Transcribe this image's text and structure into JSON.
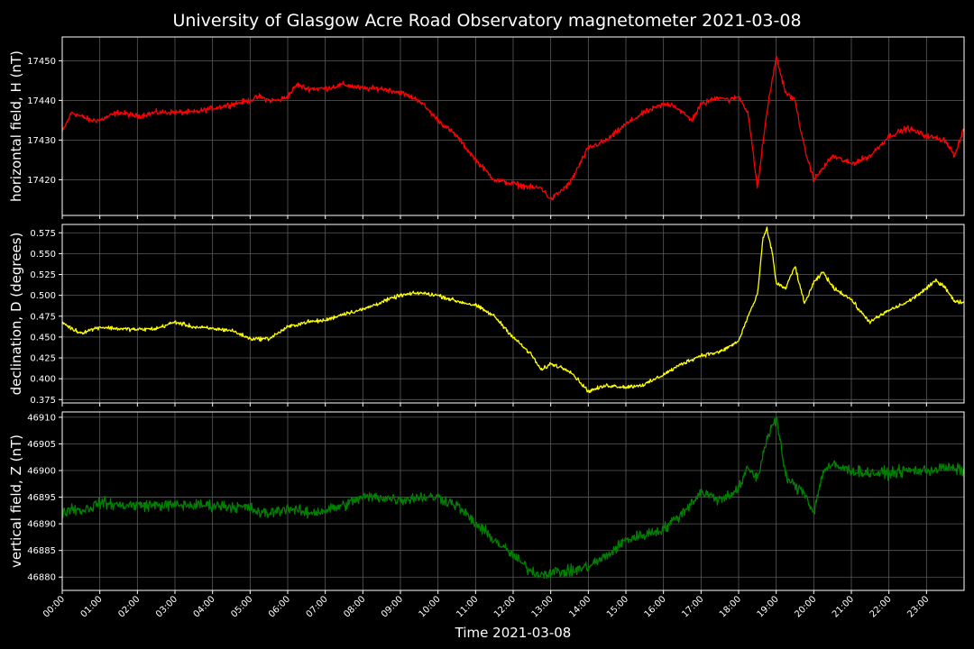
{
  "chart_data": {
    "type": "line",
    "title": "University of Glasgow Acre Road Observatory magnetometer 2021-03-08",
    "xlabel": "Time 2021-03-08",
    "x_ticks": [
      "00:00",
      "01:00",
      "02:00",
      "03:00",
      "04:00",
      "05:00",
      "06:00",
      "07:00",
      "08:00",
      "09:00",
      "10:00",
      "11:00",
      "12:00",
      "13:00",
      "14:00",
      "15:00",
      "16:00",
      "17:00",
      "18:00",
      "19:00",
      "20:00",
      "21:00",
      "22:00",
      "23:00"
    ],
    "xlim_hours": [
      0,
      24
    ],
    "grid": true,
    "background": "#000000",
    "panels": [
      {
        "ylabel": "horizontal field, H (nT)",
        "color": "#ff0000",
        "ylim": [
          17411,
          17456
        ],
        "y_ticks": [
          17420,
          17430,
          17440,
          17450
        ],
        "noise": 0.6,
        "x": [
          0,
          0.1,
          0.25,
          0.5,
          0.75,
          1,
          1.5,
          2,
          2.5,
          3,
          3.5,
          4,
          4.5,
          5,
          5.25,
          5.5,
          5.75,
          6,
          6.25,
          6.5,
          7,
          7.5,
          8,
          8.5,
          9,
          9.5,
          10,
          10.5,
          11,
          11.5,
          12,
          12.5,
          12.75,
          13,
          13.5,
          14,
          14.5,
          15,
          15.5,
          16,
          16.25,
          16.5,
          16.75,
          17,
          17.5,
          17.75,
          18,
          18.25,
          18.5,
          18.75,
          19,
          19.25,
          19.5,
          19.75,
          20,
          20.25,
          20.5,
          21,
          21.5,
          22,
          22.5,
          23,
          23.5,
          23.75,
          24
        ],
        "values": [
          17432,
          17434,
          17437,
          17436,
          17435,
          17435,
          17437,
          17436,
          17437,
          17437,
          17437,
          17438,
          17439,
          17440,
          17441,
          17440,
          17440,
          17441,
          17444,
          17443,
          17443,
          17444,
          17443,
          17443,
          17442,
          17440,
          17435,
          17431,
          17425,
          17420,
          17419,
          17418,
          17418,
          17415,
          17419,
          17428,
          17430,
          17434,
          17437,
          17439,
          17439,
          17437,
          17435,
          17439,
          17441,
          17440,
          17441,
          17437,
          17418,
          17437,
          17451,
          17442,
          17440,
          17428,
          17420,
          17423,
          17426,
          17424,
          17426,
          17431,
          17433,
          17431,
          17430,
          17426,
          17433
        ]
      },
      {
        "ylabel": "declination, D (degrees)",
        "color": "#ffff00",
        "ylim": [
          0.371,
          0.585
        ],
        "y_ticks": [
          0.375,
          0.4,
          0.425,
          0.45,
          0.475,
          0.5,
          0.525,
          0.55,
          0.575
        ],
        "y_tick_labels": [
          "0.375",
          "0.400",
          "0.425",
          "0.450",
          "0.475",
          "0.500",
          "0.525",
          "0.550",
          "0.575"
        ],
        "noise": 0.002,
        "x": [
          0,
          0.25,
          0.5,
          1,
          1.5,
          2,
          2.5,
          3,
          3.5,
          4,
          4.5,
          5,
          5.5,
          6,
          6.5,
          7,
          7.5,
          8,
          8.5,
          9,
          9.5,
          10,
          10.5,
          11,
          11.5,
          12,
          12.5,
          12.75,
          13,
          13.5,
          14,
          14.5,
          15,
          15.5,
          16,
          16.5,
          17,
          17.5,
          18,
          18.25,
          18.5,
          18.65,
          18.75,
          18.9,
          19,
          19.25,
          19.5,
          19.75,
          20,
          20.25,
          20.5,
          21,
          21.25,
          21.5,
          22,
          22.5,
          23,
          23.25,
          23.5,
          23.75,
          24
        ],
        "values": [
          0.468,
          0.46,
          0.455,
          0.462,
          0.46,
          0.459,
          0.46,
          0.468,
          0.462,
          0.46,
          0.458,
          0.448,
          0.448,
          0.462,
          0.468,
          0.47,
          0.478,
          0.483,
          0.492,
          0.5,
          0.503,
          0.5,
          0.493,
          0.488,
          0.475,
          0.45,
          0.428,
          0.41,
          0.418,
          0.41,
          0.385,
          0.392,
          0.39,
          0.393,
          0.405,
          0.418,
          0.428,
          0.432,
          0.445,
          0.475,
          0.5,
          0.568,
          0.58,
          0.55,
          0.515,
          0.508,
          0.535,
          0.49,
          0.515,
          0.528,
          0.51,
          0.495,
          0.48,
          0.468,
          0.482,
          0.492,
          0.508,
          0.518,
          0.51,
          0.492,
          0.492
        ]
      },
      {
        "ylabel": "vertical field, Z (nT)",
        "color": "#008000",
        "ylim": [
          46877.5,
          46911
        ],
        "y_ticks": [
          46880,
          46885,
          46890,
          46895,
          46900,
          46905,
          46910
        ],
        "noise": 0.9,
        "x": [
          0,
          0.25,
          0.5,
          0.75,
          1,
          1.5,
          2,
          3,
          4,
          5,
          5.25,
          5.5,
          6,
          6.5,
          7,
          7.5,
          8,
          8.5,
          9,
          9.5,
          10,
          10.5,
          11,
          11.5,
          12,
          12.5,
          12.75,
          13,
          13.5,
          14,
          14.5,
          15,
          15.5,
          16,
          16.5,
          17,
          17.5,
          18,
          18.25,
          18.5,
          18.75,
          19,
          19.25,
          19.5,
          19.75,
          20,
          20.25,
          20.5,
          21,
          21.5,
          22,
          22.5,
          23,
          23.5,
          24
        ],
        "values": [
          46892,
          46893,
          46892.5,
          46893,
          46894,
          46893.5,
          46893.5,
          46893.5,
          46893.5,
          46893,
          46892,
          46892,
          46893,
          46892,
          46892.5,
          46893.5,
          46895,
          46895,
          46894.5,
          46895,
          46895,
          46893.5,
          46890,
          46887,
          46884,
          46881,
          46880.5,
          46881,
          46881,
          46882,
          46884,
          46887,
          46888,
          46889,
          46892,
          46896,
          46894.5,
          46896.5,
          46900.5,
          46898.5,
          46906,
          46910,
          46899,
          46897,
          46896,
          46892,
          46900,
          46901,
          46900,
          46899.5,
          46899.5,
          46900,
          46900,
          46900.5,
          46900
        ]
      }
    ]
  }
}
